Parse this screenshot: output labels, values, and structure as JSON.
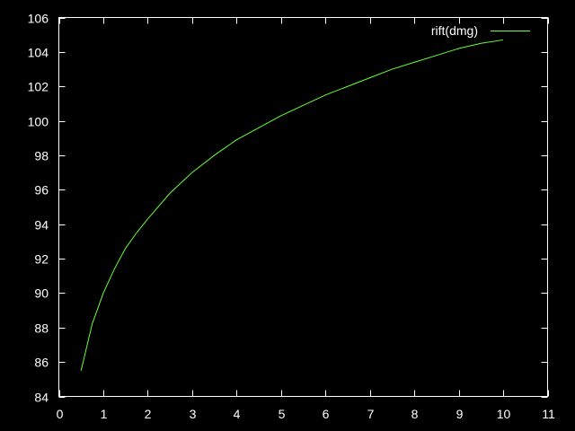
{
  "chart_data": {
    "type": "line",
    "title": "",
    "xlabel": "",
    "ylabel": "",
    "xlim": [
      0,
      11
    ],
    "ylim": [
      84,
      106
    ],
    "x_ticks": [
      0,
      1,
      2,
      3,
      4,
      5,
      6,
      7,
      8,
      9,
      10,
      11
    ],
    "y_ticks": [
      84,
      86,
      88,
      90,
      92,
      94,
      96,
      98,
      100,
      102,
      104,
      106
    ],
    "grid": false,
    "legend": "top-right",
    "colors": {
      "background": "#000000",
      "axes": "#ffffff",
      "text": "#ffffff"
    },
    "series": [
      {
        "name": "rift(dmg)",
        "color": "#66ff33",
        "x": [
          0.5,
          0.75,
          1.0,
          1.25,
          1.5,
          1.75,
          2.0,
          2.5,
          3.0,
          3.5,
          4.0,
          4.5,
          5.0,
          5.5,
          6.0,
          6.5,
          7.0,
          7.5,
          8.0,
          8.5,
          9.0,
          9.5,
          10.0
        ],
        "y": [
          85.5,
          88.2,
          90.0,
          91.4,
          92.6,
          93.5,
          94.3,
          95.8,
          97.0,
          98.0,
          98.9,
          99.6,
          100.3,
          100.9,
          101.5,
          102.0,
          102.5,
          103.0,
          103.4,
          103.8,
          104.2,
          104.5,
          104.7
        ]
      }
    ]
  }
}
